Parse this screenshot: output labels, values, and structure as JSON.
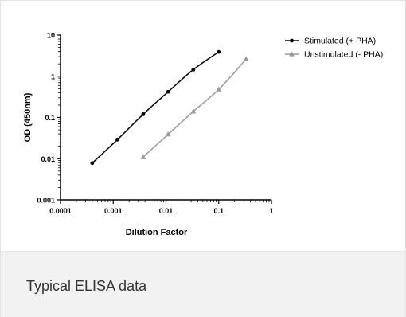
{
  "caption": "Typical ELISA data",
  "colors": {
    "stimulated": "#000000",
    "unstimulated": "#999999",
    "caption_band": "#f2f2f2"
  },
  "chart_data": {
    "type": "line",
    "xlabel": "Dilution Factor",
    "ylabel": "OD (450nm)",
    "xscale": "log",
    "yscale": "log",
    "xlim": [
      0.0001,
      1
    ],
    "ylim": [
      0.001,
      10
    ],
    "x_tick_labels": [
      "0.0001",
      "0.001",
      "0.01",
      "0.1",
      "1"
    ],
    "y_tick_labels": [
      "0.001",
      "0.01",
      "0.1",
      "1",
      "10"
    ],
    "x_ticks": [
      0.0001,
      0.001,
      0.01,
      0.1,
      1
    ],
    "y_ticks": [
      0.001,
      0.01,
      0.1,
      1,
      10
    ],
    "grid": false,
    "legend": "top-right",
    "series": [
      {
        "name": "Stimulated (+ PHA)",
        "marker": "circle",
        "color": "#000000",
        "x": [
          0.0004,
          0.0012,
          0.0037,
          0.011,
          0.033,
          0.1
        ],
        "y": [
          0.0078,
          0.029,
          0.12,
          0.42,
          1.45,
          3.9
        ]
      },
      {
        "name": "Unstimulated (- PHA)",
        "marker": "triangle",
        "color": "#999999",
        "x": [
          0.0037,
          0.011,
          0.033,
          0.1,
          0.33
        ],
        "y": [
          0.011,
          0.039,
          0.14,
          0.48,
          2.6
        ]
      }
    ]
  }
}
